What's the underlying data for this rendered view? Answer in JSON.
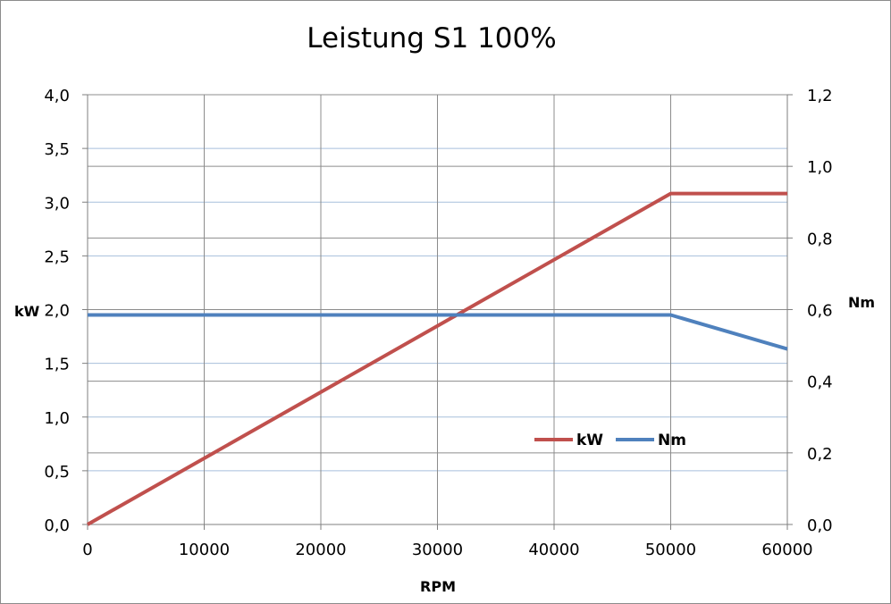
{
  "chart_data": {
    "type": "line",
    "title": "Leistung S1 100%",
    "xlabel": "RPM",
    "ylabel": "kW",
    "y2label": "Nm",
    "xlim": [
      0,
      60000
    ],
    "ylim": [
      0,
      4.0
    ],
    "y2lim": [
      0,
      1.2
    ],
    "x_ticks": [
      "0",
      "10000",
      "20000",
      "30000",
      "40000",
      "50000",
      "60000"
    ],
    "y_ticks": [
      "0,0",
      "0,5",
      "1,0",
      "1,5",
      "2,0",
      "2,5",
      "3,0",
      "3,5",
      "4,0"
    ],
    "y2_ticks": [
      "0,0",
      "0,2",
      "0,4",
      "0,6",
      "0,8",
      "1,0",
      "1,2"
    ],
    "grid": true,
    "legend_position": "inside-right",
    "series": [
      {
        "name": "kW",
        "axis": "left",
        "color": "#c0504d",
        "x": [
          0,
          50000,
          60000
        ],
        "y": [
          0,
          3.08,
          3.08
        ]
      },
      {
        "name": "Nm",
        "axis": "right",
        "color": "#4f81bd",
        "x": [
          0,
          50000,
          60000
        ],
        "y": [
          0.585,
          0.585,
          0.49
        ]
      }
    ]
  }
}
